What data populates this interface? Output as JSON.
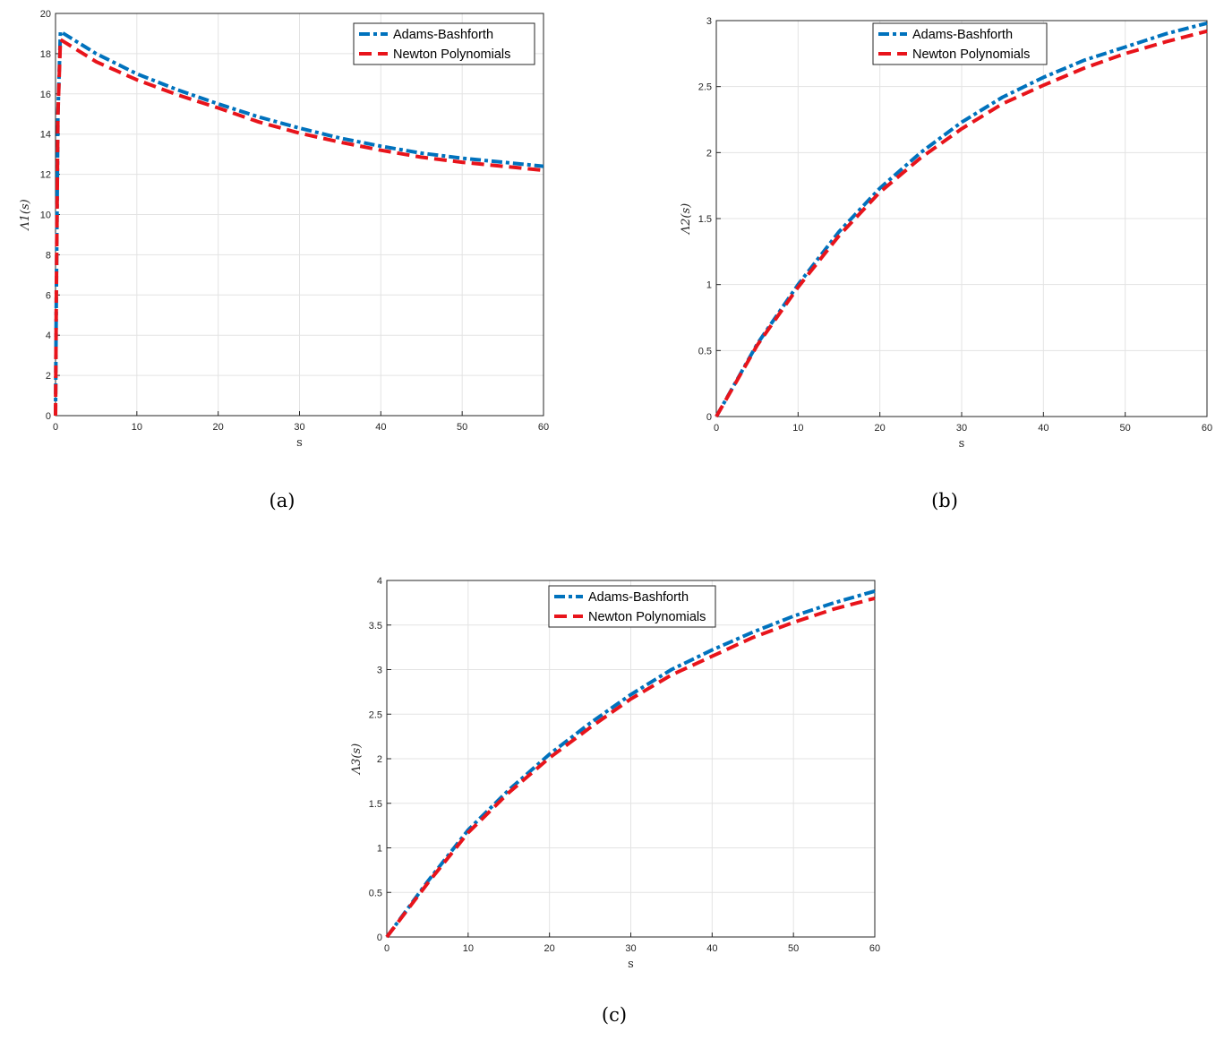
{
  "chart_data": [
    {
      "type": "line",
      "caption": "(a)",
      "xlabel": "s",
      "ylabel": "Λ1(s)",
      "xlim": [
        0,
        60
      ],
      "ylim": [
        0,
        20
      ],
      "xticks": [
        "0",
        "10",
        "20",
        "30",
        "40",
        "50",
        "60"
      ],
      "yticks": [
        "0",
        "2",
        "4",
        "6",
        "8",
        "10",
        "12",
        "14",
        "16",
        "18",
        "20"
      ],
      "grid": true,
      "legend": "top-right",
      "series": [
        {
          "name": "Adams-Bashforth",
          "color": "#0072BD",
          "style": "dash-dot",
          "x": [
            0,
            0.1,
            0.3,
            0.6,
            1,
            5,
            10,
            15,
            20,
            25,
            30,
            35,
            40,
            45,
            50,
            55,
            60
          ],
          "y": [
            0,
            6,
            15,
            19.1,
            19.0,
            18.0,
            17.0,
            16.2,
            15.5,
            14.85,
            14.3,
            13.8,
            13.4,
            13.05,
            12.8,
            12.6,
            12.4
          ]
        },
        {
          "name": "Newton Polynomials",
          "color": "#E8141B",
          "style": "dashed",
          "x": [
            0,
            0.1,
            0.3,
            0.6,
            1,
            5,
            10,
            15,
            20,
            25,
            30,
            35,
            40,
            45,
            50,
            55,
            60
          ],
          "y": [
            0,
            6,
            15,
            18.7,
            18.6,
            17.6,
            16.7,
            15.95,
            15.3,
            14.6,
            14.05,
            13.6,
            13.2,
            12.85,
            12.6,
            12.4,
            12.2
          ]
        }
      ]
    },
    {
      "type": "line",
      "caption": "(b)",
      "xlabel": "s",
      "ylabel": "Λ2(s)",
      "xlim": [
        0,
        60
      ],
      "ylim": [
        0,
        3
      ],
      "xticks": [
        "0",
        "10",
        "20",
        "30",
        "40",
        "50",
        "60"
      ],
      "yticks": [
        "0",
        "0.5",
        "1",
        "1.5",
        "2",
        "2.5",
        "3"
      ],
      "grid": true,
      "legend": "top-left",
      "series": [
        {
          "name": "Adams-Bashforth",
          "color": "#0072BD",
          "style": "dash-dot",
          "x": [
            0,
            5,
            10,
            15,
            20,
            25,
            30,
            35,
            40,
            45,
            50,
            55,
            60
          ],
          "y": [
            0,
            0.55,
            1.0,
            1.4,
            1.73,
            2.0,
            2.23,
            2.42,
            2.57,
            2.7,
            2.8,
            2.9,
            2.98
          ]
        },
        {
          "name": "Newton Polynomials",
          "color": "#E8141B",
          "style": "dashed",
          "x": [
            0,
            5,
            10,
            15,
            20,
            25,
            30,
            35,
            40,
            45,
            50,
            55,
            60
          ],
          "y": [
            0,
            0.54,
            0.98,
            1.37,
            1.7,
            1.96,
            2.18,
            2.37,
            2.51,
            2.64,
            2.75,
            2.84,
            2.92
          ]
        }
      ]
    },
    {
      "type": "line",
      "caption": "(c)",
      "xlabel": "s",
      "ylabel": "Λ3(s)",
      "xlim": [
        0,
        60
      ],
      "ylim": [
        0,
        4
      ],
      "xticks": [
        "0",
        "10",
        "20",
        "30",
        "40",
        "50",
        "60"
      ],
      "yticks": [
        "0",
        "0.5",
        "1",
        "1.5",
        "2",
        "2.5",
        "3",
        "3.5",
        "4"
      ],
      "grid": true,
      "legend": "top-center",
      "series": [
        {
          "name": "Adams-Bashforth",
          "color": "#0072BD",
          "style": "dash-dot",
          "x": [
            0,
            5,
            10,
            15,
            20,
            25,
            30,
            35,
            40,
            45,
            50,
            55,
            60
          ],
          "y": [
            0,
            0.62,
            1.2,
            1.65,
            2.05,
            2.4,
            2.72,
            3.0,
            3.22,
            3.42,
            3.6,
            3.75,
            3.88
          ]
        },
        {
          "name": "Newton Polynomials",
          "color": "#E8141B",
          "style": "dashed",
          "x": [
            0,
            5,
            10,
            15,
            20,
            25,
            30,
            35,
            40,
            45,
            50,
            55,
            60
          ],
          "y": [
            0,
            0.6,
            1.17,
            1.62,
            2.01,
            2.35,
            2.67,
            2.94,
            3.15,
            3.36,
            3.53,
            3.68,
            3.8
          ]
        }
      ]
    }
  ]
}
